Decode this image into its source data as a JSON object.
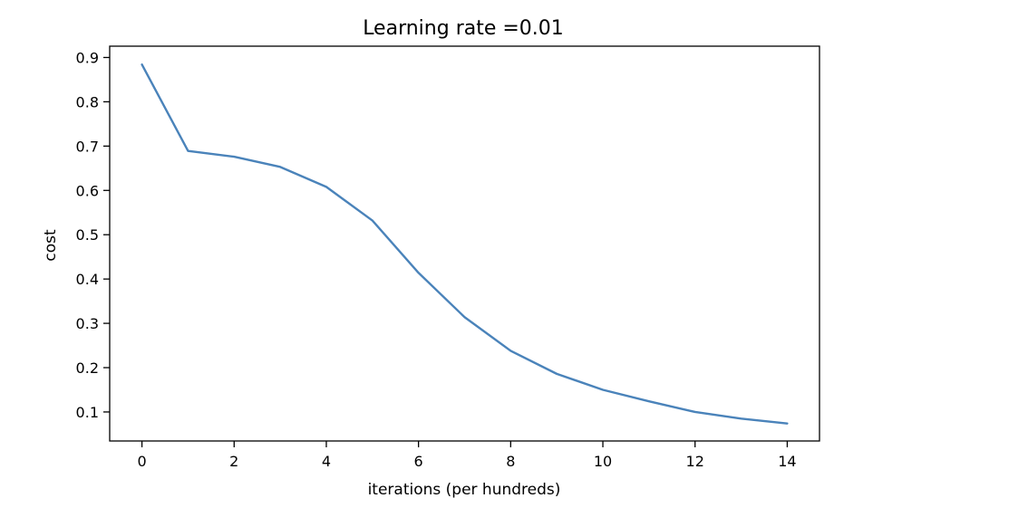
{
  "chart_data": {
    "type": "line",
    "title": "Learning rate =0.01",
    "xlabel": "iterations (per hundreds)",
    "ylabel": "cost",
    "xlim": [
      -0.7,
      14.7
    ],
    "ylim": [
      0.0345,
      0.9255
    ],
    "xticks": [
      0,
      2,
      4,
      6,
      8,
      10,
      12,
      14
    ],
    "yticks": [
      0.1,
      0.2,
      0.3,
      0.4,
      0.5,
      0.6,
      0.7,
      0.8,
      0.9
    ],
    "grid": false,
    "series": [
      {
        "color": "#4a83ba",
        "x": [
          0,
          1,
          2,
          3,
          4,
          5,
          6,
          7,
          8,
          9,
          10,
          11,
          12,
          13,
          14
        ],
        "y": [
          0.884,
          0.689,
          0.676,
          0.653,
          0.608,
          0.532,
          0.414,
          0.314,
          0.238,
          0.186,
          0.15,
          0.124,
          0.1,
          0.085,
          0.074
        ]
      }
    ]
  }
}
